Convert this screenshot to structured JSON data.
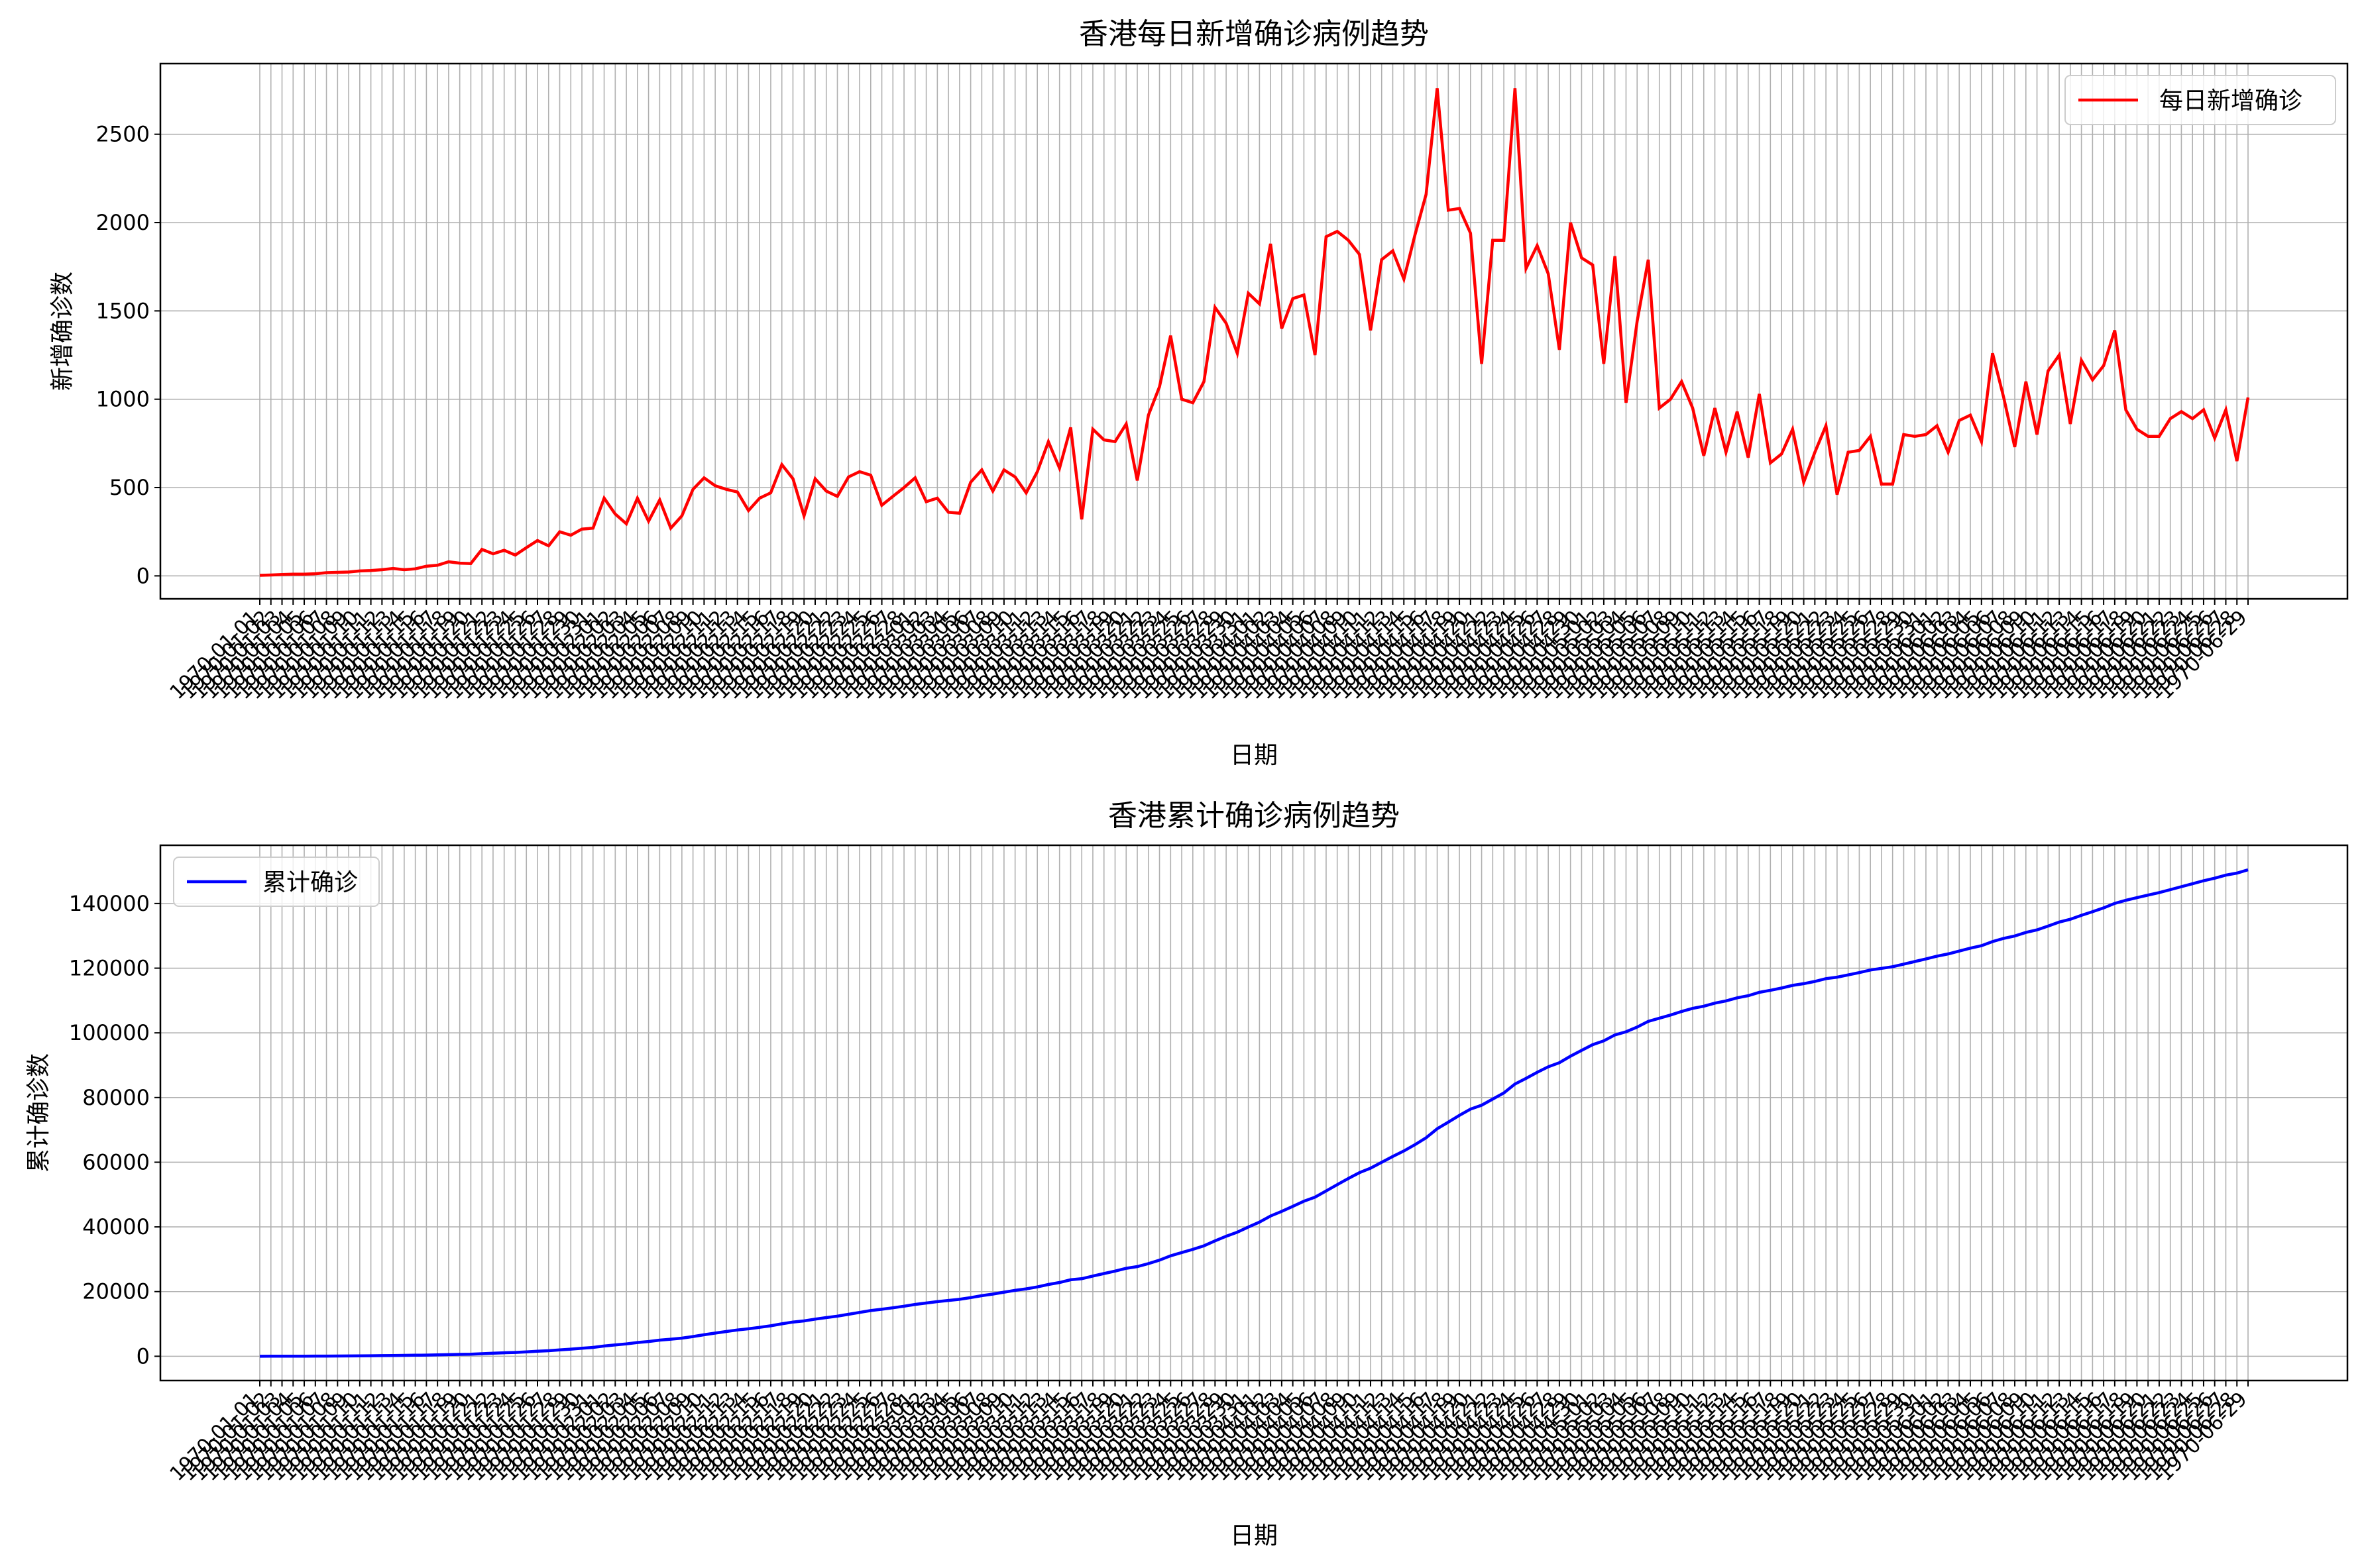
{
  "colors": {
    "daily": "#ff0000",
    "cumulative": "#0000ff",
    "grid": "#b0b0b0"
  },
  "chart_data": [
    {
      "type": "line",
      "title": "香港每日新增确诊病例趋势",
      "xlabel": "日期",
      "ylabel": "新增确诊数",
      "ylim": [
        -130,
        2900
      ],
      "yticks": [
        0,
        500,
        1000,
        1500,
        2000,
        2500
      ],
      "x_first_label": "1970-01-01",
      "x_last_label": "1970-06-29",
      "legend": {
        "position": "top-right",
        "label": "每日新增确诊"
      },
      "grid": true,
      "series": [
        {
          "name": "每日新增确诊",
          "values": [
            3,
            5,
            8,
            10,
            10,
            12,
            18,
            20,
            22,
            28,
            30,
            35,
            42,
            35,
            40,
            55,
            60,
            80,
            72,
            70,
            150,
            125,
            145,
            118,
            160,
            200,
            170,
            250,
            230,
            265,
            270,
            440,
            350,
            295,
            440,
            310,
            430,
            270,
            340,
            490,
            555,
            510,
            490,
            475,
            370,
            440,
            470,
            630,
            550,
            340,
            550,
            480,
            450,
            560,
            590,
            570,
            400,
            450,
            500,
            555,
            420,
            440,
            360,
            355,
            530,
            600,
            480,
            600,
            560,
            470,
            590,
            760,
            610,
            840,
            320,
            830,
            770,
            760,
            860,
            540,
            910,
            1070,
            1360,
            1000,
            980,
            1100,
            1520,
            1430,
            1260,
            1600,
            1540,
            1880,
            1400,
            1570,
            1590,
            1250,
            1920,
            1950,
            1900,
            1820,
            1390,
            1790,
            1840,
            1680,
            1930,
            2160,
            2760,
            2070,
            2080,
            1940,
            1200,
            1900,
            1900,
            2760,
            1740,
            1870,
            1710,
            1280,
            2000,
            1800,
            1760,
            1200,
            1810,
            980,
            1440,
            1790,
            950,
            1000,
            1100,
            950,
            680,
            950,
            700,
            930,
            670,
            1030,
            640,
            690,
            830,
            530,
            700,
            850,
            460,
            700,
            710,
            790,
            520,
            520,
            800,
            790,
            800,
            850,
            700,
            880,
            910,
            760,
            1260,
            1010,
            730,
            1100,
            800,
            1160,
            1250,
            860,
            1220,
            1110,
            1190,
            1390,
            940,
            830,
            790,
            790,
            890,
            930,
            890,
            940,
            780,
            940,
            650,
            1010
          ]
        }
      ]
    },
    {
      "type": "line",
      "title": "香港累计确诊病例趋势",
      "xlabel": "日期",
      "ylabel": "累计确诊数",
      "ylim": [
        -7500,
        158000
      ],
      "yticks": [
        0,
        20000,
        40000,
        60000,
        80000,
        100000,
        120000,
        140000
      ],
      "x_first_label": "1970-01-01",
      "x_last_label": "1970-06-29",
      "legend": {
        "position": "top-left",
        "label": "累计确诊"
      },
      "grid": true,
      "series": [
        {
          "name": "累计确诊",
          "cumulative_of": 0
        }
      ]
    }
  ]
}
